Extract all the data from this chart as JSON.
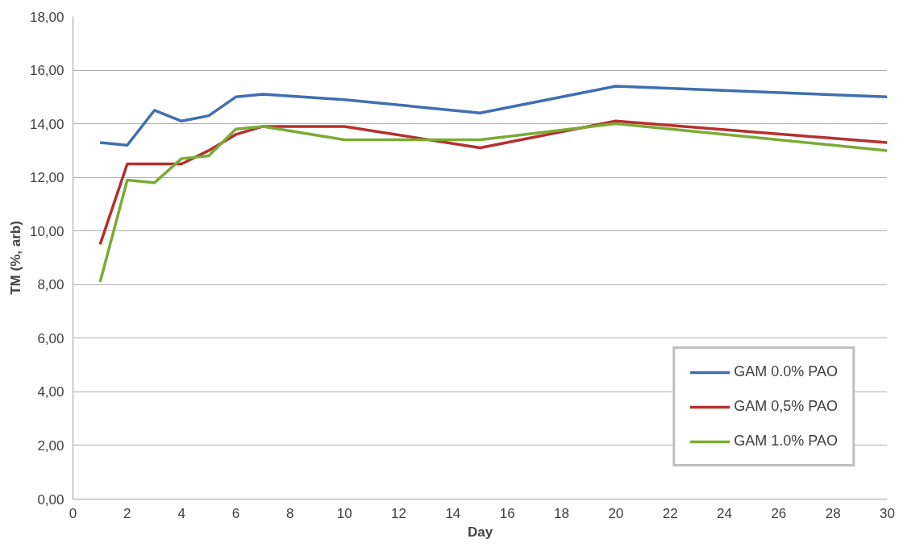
{
  "chart_data": {
    "type": "line",
    "xlabel": "Day",
    "ylabel": "TM (%, arb)",
    "x": [
      1,
      2,
      3,
      4,
      5,
      6,
      7,
      10,
      15,
      20,
      30
    ],
    "series": [
      {
        "name": "GAM 0.0% PAO",
        "color": "#3f6fb0",
        "values": [
          13.3,
          13.2,
          14.5,
          14.1,
          14.3,
          15.0,
          15.1,
          14.9,
          14.4,
          15.4,
          15.0
        ]
      },
      {
        "name": "GAM 0,5% PAO",
        "color": "#b5302c",
        "values": [
          9.5,
          12.5,
          12.5,
          12.5,
          13.0,
          13.6,
          13.9,
          13.9,
          13.1,
          14.1,
          13.3
        ]
      },
      {
        "name": "GAM 1.0% PAO",
        "color": "#7aab35",
        "values": [
          8.1,
          11.9,
          11.8,
          12.7,
          12.8,
          13.8,
          13.9,
          13.4,
          13.4,
          14.0,
          13.0
        ]
      }
    ],
    "xlim": [
      0,
      30
    ],
    "xticks": [
      0,
      2,
      4,
      6,
      8,
      10,
      12,
      14,
      16,
      18,
      20,
      22,
      24,
      26,
      28,
      30
    ],
    "ylim": [
      0,
      18
    ],
    "yticks": [
      {
        "value": 0,
        "label": "0,00"
      },
      {
        "value": 2,
        "label": "2,00"
      },
      {
        "value": 4,
        "label": "4,00"
      },
      {
        "value": 6,
        "label": "6,00"
      },
      {
        "value": 8,
        "label": "8,00"
      },
      {
        "value": 10,
        "label": "10,00"
      },
      {
        "value": 12,
        "label": "12,00"
      },
      {
        "value": 14,
        "label": "14,00"
      },
      {
        "value": 16,
        "label": "16,00"
      },
      {
        "value": 18,
        "label": "18,00"
      }
    ],
    "grid": "y",
    "legend": "bottom right",
    "marker": "none",
    "line_style": "solid"
  }
}
